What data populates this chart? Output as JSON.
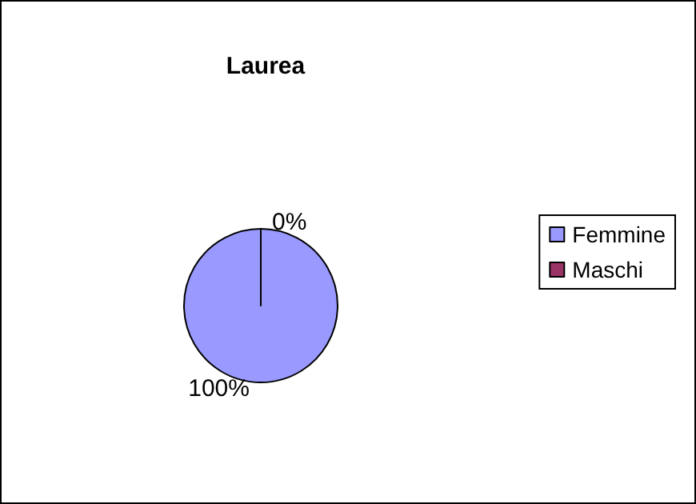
{
  "chart_data": {
    "type": "pie",
    "title": "Laurea",
    "categories": [
      "Femmine",
      "Maschi"
    ],
    "values": [
      100,
      0
    ],
    "colors": [
      "#9999ff",
      "#993366"
    ],
    "value_labels": [
      "100%",
      "0%"
    ],
    "legend": "right"
  }
}
